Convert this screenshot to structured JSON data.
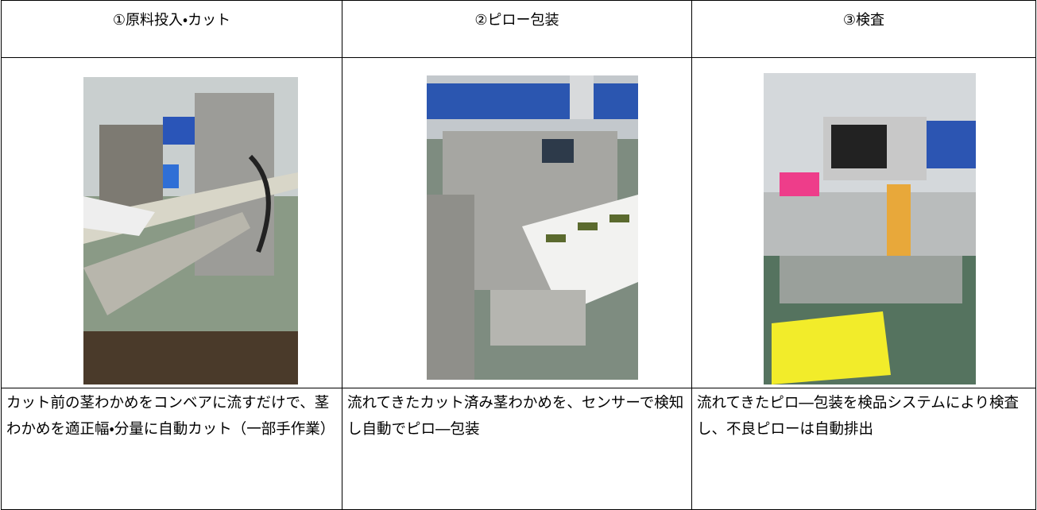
{
  "table": {
    "header": [
      "①原料投入・カット",
      "②ピロー包装",
      "③検査"
    ],
    "descriptions": [
      "カット前の茎わかめをコンベアに流すだけで、茎わかめを適正幅・分量に自動カット（一部手作業）",
      "流れてきたカット済み茎わかめを、センサーで検知し自動でピロ―包装",
      "流れてきたピロ―包装を検品システムにより検査し、不良ピローは自動排出"
    ]
  }
}
